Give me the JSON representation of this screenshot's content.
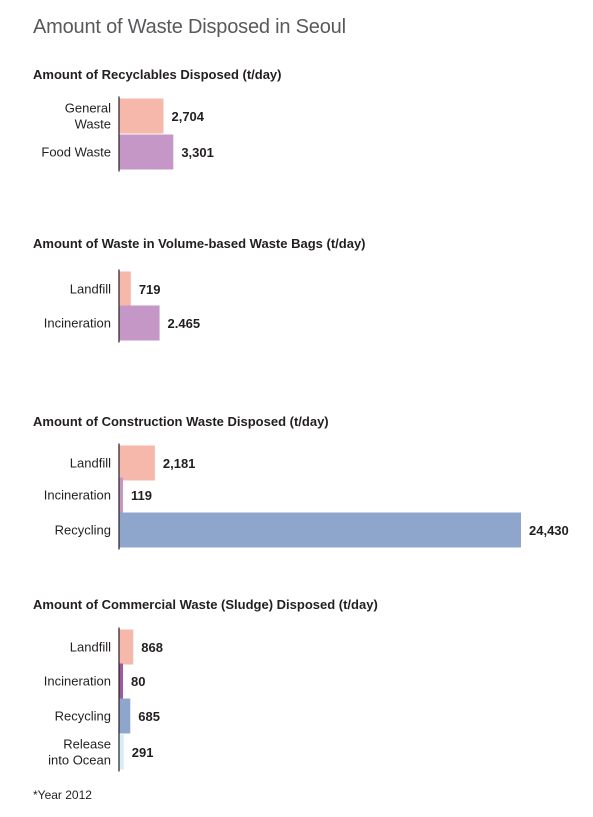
{
  "page": {
    "title": "Amount of Waste Disposed in Seoul",
    "footnote": "*Year 2012"
  },
  "chart_data": [
    {
      "type": "bar",
      "orientation": "horizontal",
      "title": "Amount of Recyclables Disposed (t/day)",
      "categories": [
        "General Waste",
        "Food Waste"
      ],
      "category_lines": [
        [
          "General",
          "Waste"
        ],
        [
          "Food Waste"
        ]
      ],
      "values": [
        2704,
        3301
      ],
      "value_labels": [
        "2,704",
        "3,301"
      ],
      "colors": [
        "#f6b8aa",
        "#c597c6"
      ]
    },
    {
      "type": "bar",
      "orientation": "horizontal",
      "title": "Amount of Waste in Volume-based Waste Bags (t/day)",
      "categories": [
        "Landfill",
        "Incineration"
      ],
      "category_lines": [
        [
          "Landfill"
        ],
        [
          "Incineration"
        ]
      ],
      "values": [
        719,
        2465
      ],
      "value_labels": [
        "719",
        "2.465"
      ],
      "colors": [
        "#f6b8aa",
        "#c597c6"
      ]
    },
    {
      "type": "bar",
      "orientation": "horizontal",
      "title": "Amount of Construction Waste Disposed (t/day)",
      "categories": [
        "Landfill",
        "Incineration",
        "Recycling"
      ],
      "category_lines": [
        [
          "Landfill"
        ],
        [
          "Incineration"
        ],
        [
          "Recycling"
        ]
      ],
      "values": [
        2181,
        119,
        24430
      ],
      "value_labels": [
        "2,181",
        "119",
        "24,430"
      ],
      "colors": [
        "#f6b8aa",
        "#c597c6",
        "#8fa6cc"
      ]
    },
    {
      "type": "bar",
      "orientation": "horizontal",
      "title": "Amount of Commercial Waste (Sludge) Disposed (t/day)",
      "categories": [
        "Landfill",
        "Incineration",
        "Recycling",
        "Release into Ocean"
      ],
      "category_lines": [
        [
          "Landfill"
        ],
        [
          "Incineration"
        ],
        [
          "Recycling"
        ],
        [
          "Release",
          "into Ocean"
        ]
      ],
      "values": [
        868,
        80,
        685,
        291
      ],
      "value_labels": [
        "868",
        "80",
        "685",
        "291"
      ],
      "colors": [
        "#f6b8aa",
        "#a0589f",
        "#8fa6cc",
        "#d6ecf9"
      ]
    }
  ]
}
